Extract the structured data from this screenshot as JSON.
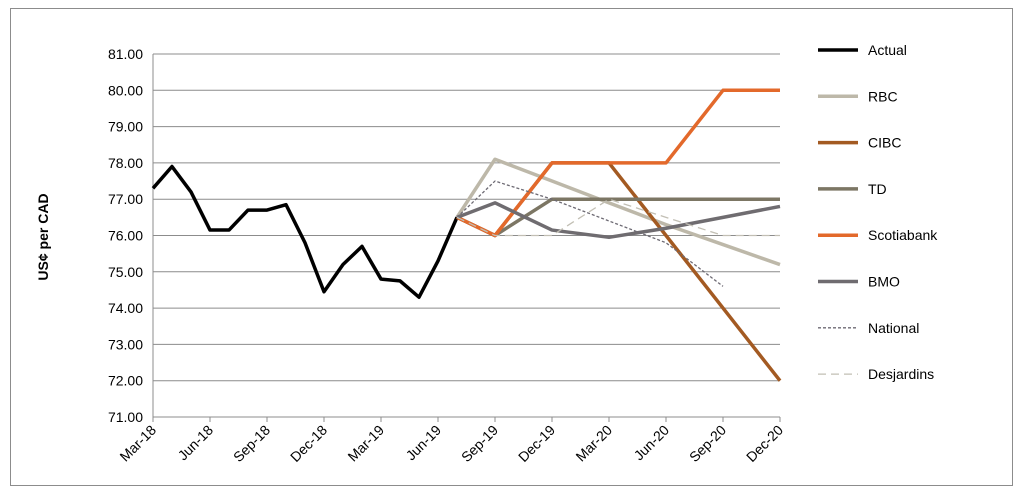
{
  "chart_data": {
    "type": "line",
    "ylabel": "US¢ per CAD",
    "xlabel": "",
    "ylim": [
      71,
      81
    ],
    "grid": "horizontal",
    "legend_position": "right",
    "x_ticks": [
      "Mar-18",
      "Jun-18",
      "Sep-18",
      "Dec-18",
      "Mar-19",
      "Jun-19",
      "Sep-19",
      "Dec-19",
      "Mar-20",
      "Jun-20",
      "Sep-20",
      "Dec-20"
    ],
    "y_ticks": [
      "71.00",
      "72.00",
      "73.00",
      "74.00",
      "75.00",
      "76.00",
      "77.00",
      "78.00",
      "79.00",
      "80.00",
      "81.00"
    ],
    "series": [
      {
        "name": "Actual",
        "color": "#000000",
        "dash": "solid",
        "x": [
          "Mar-18",
          "Apr-18",
          "May-18",
          "Jun-18",
          "Jul-18",
          "Aug-18",
          "Sep-18",
          "Oct-18",
          "Nov-18",
          "Dec-18",
          "Jan-19",
          "Feb-19",
          "Mar-19",
          "Apr-19",
          "May-19",
          "Jun-19",
          "Jul-19"
        ],
        "values": [
          77.3,
          77.9,
          77.2,
          76.15,
          76.15,
          76.7,
          76.7,
          76.85,
          75.8,
          74.45,
          75.2,
          75.7,
          74.8,
          74.75,
          74.3,
          75.3,
          76.5
        ]
      },
      {
        "name": "RBC",
        "color": "#bdb8a9",
        "dash": "solid",
        "x": [
          "Jul-19",
          "Sep-19",
          "Dec-19",
          "Mar-20",
          "Jun-20",
          "Sep-20",
          "Dec-20"
        ],
        "values": [
          76.5,
          78.1,
          77.5,
          76.9,
          76.3,
          75.75,
          75.2
        ]
      },
      {
        "name": "CIBC",
        "color": "#a35a22",
        "dash": "solid",
        "x": [
          "Jul-19",
          "Sep-19",
          "Dec-19",
          "Mar-20",
          "Jun-20",
          "Sep-20",
          "Dec-20"
        ],
        "values": [
          76.5,
          76.0,
          78.0,
          78.0,
          76.0,
          74.0,
          72.0
        ]
      },
      {
        "name": "TD",
        "color": "#7c7664",
        "dash": "solid",
        "x": [
          "Jul-19",
          "Sep-19",
          "Dec-19",
          "Mar-20",
          "Jun-20",
          "Sep-20",
          "Dec-20"
        ],
        "values": [
          76.5,
          76.0,
          77.0,
          77.0,
          77.0,
          77.0,
          77.0
        ]
      },
      {
        "name": "Scotiabank",
        "color": "#e3692b",
        "dash": "solid",
        "x": [
          "Jul-19",
          "Sep-19",
          "Dec-19",
          "Mar-20",
          "Jun-20",
          "Sep-20",
          "Dec-20"
        ],
        "values": [
          76.5,
          76.0,
          78.0,
          78.0,
          78.0,
          80.0,
          80.0
        ]
      },
      {
        "name": "BMO",
        "color": "#6f6c70",
        "dash": "solid",
        "x": [
          "Jul-19",
          "Sep-19",
          "Dec-19",
          "Mar-20",
          "Jun-20",
          "Sep-20",
          "Dec-20"
        ],
        "values": [
          76.5,
          76.9,
          76.15,
          75.95,
          76.2,
          76.5,
          76.8
        ]
      },
      {
        "name": "National",
        "color": "#6d6a73",
        "dash": "dashed-fine",
        "x": [
          "Jul-19",
          "Sep-19",
          "Dec-19",
          "Mar-20",
          "Jun-20",
          "Sep-20"
        ],
        "values": [
          76.5,
          77.5,
          77.0,
          76.4,
          75.8,
          74.6
        ]
      },
      {
        "name": "Desjardins",
        "color": "#c2bfb4",
        "dash": "dashed",
        "x": [
          "Jul-19",
          "Sep-19",
          "Dec-19",
          "Mar-20",
          "Jun-20",
          "Sep-20",
          "Dec-20"
        ],
        "values": [
          76.5,
          76.0,
          76.0,
          77.0,
          76.5,
          76.0,
          76.0
        ]
      }
    ]
  }
}
